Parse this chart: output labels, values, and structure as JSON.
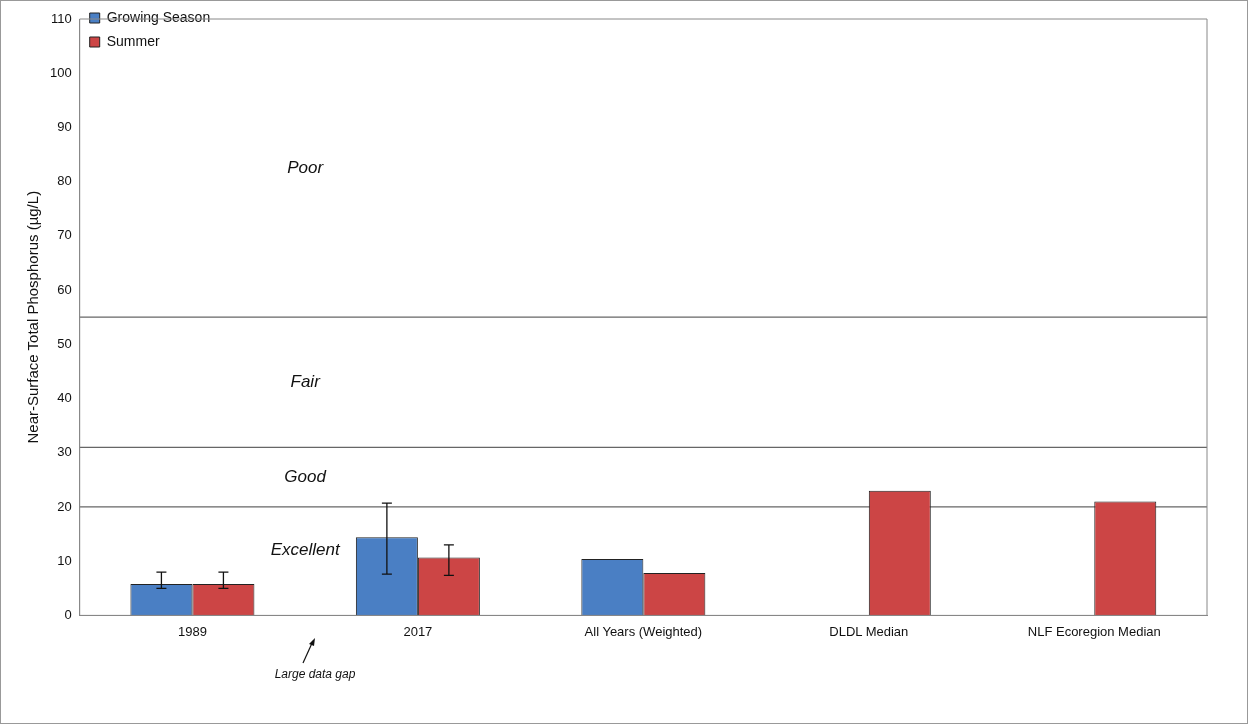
{
  "chart_data": {
    "type": "bar",
    "ylabel": "Near-Surface Total Phosphorus (µg/L)",
    "categories": [
      "1989",
      "2017",
      "All Years (Weighted)",
      "DLDL Median",
      "NLF Ecoregion Median"
    ],
    "series": [
      {
        "name": "Growing Season",
        "color": "#4a7fc4",
        "values": [
          5.8,
          14.4,
          10.4,
          null,
          null
        ],
        "errors": [
          [
            5,
            8
          ],
          [
            7.6,
            20.7
          ],
          null,
          null,
          null
        ]
      },
      {
        "name": "Summer",
        "color": "#cc4545",
        "values": [
          5.8,
          10.7,
          7.8,
          23,
          21
        ],
        "errors": [
          [
            5,
            8
          ],
          [
            7.4,
            13
          ],
          null,
          null,
          null
        ]
      }
    ],
    "ylim": [
      0,
      110
    ],
    "yticks": [
      0,
      10,
      20,
      30,
      40,
      50,
      60,
      70,
      80,
      90,
      100,
      110
    ],
    "ref_lines": [
      {
        "axis": "y",
        "value": 20
      },
      {
        "axis": "y",
        "value": 31
      },
      {
        "axis": "y",
        "value": 55
      }
    ],
    "annotations": [
      "Poor",
      "Fair",
      "Good",
      "Excellent",
      "Large data gap"
    ],
    "legend": "top left",
    "grid": false
  }
}
